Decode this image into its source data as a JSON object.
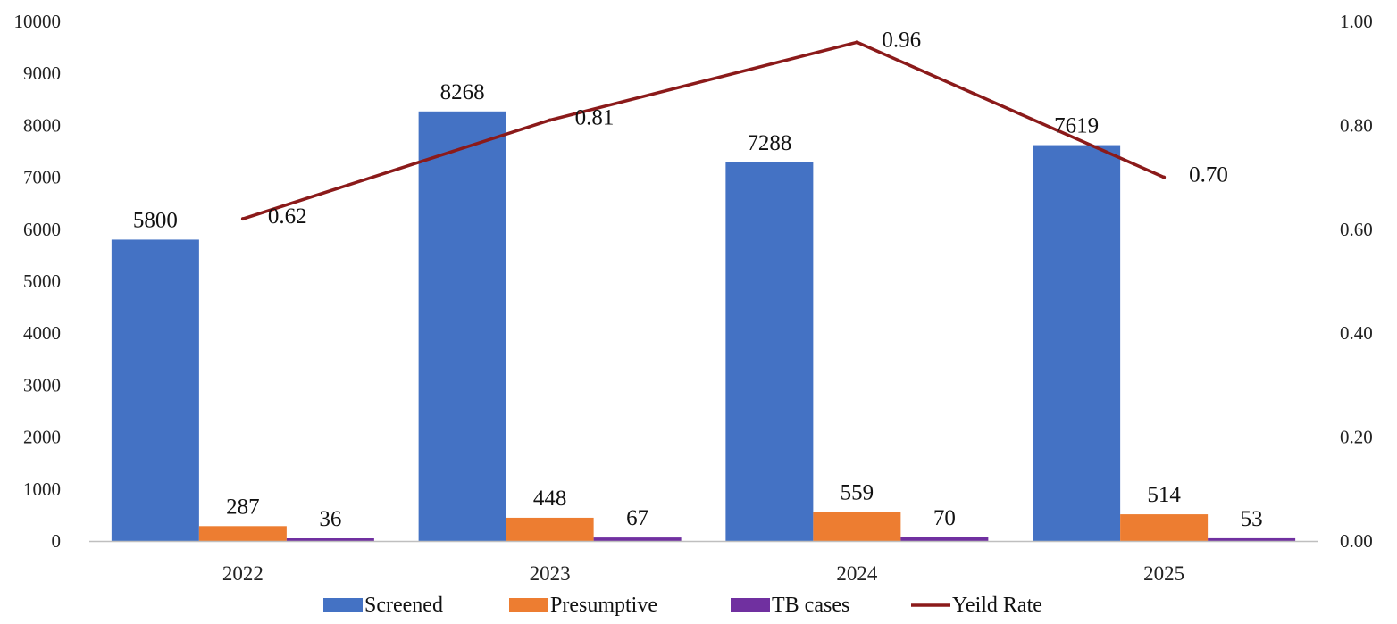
{
  "chart_data": {
    "type": "bar",
    "categories": [
      "2022",
      "2023",
      "2024",
      "2025"
    ],
    "series": [
      {
        "name": "Screened",
        "type": "bar",
        "axis": "left",
        "values": [
          5800,
          8268,
          7288,
          7619
        ],
        "labels": [
          "5800",
          "8268",
          "7288",
          "7619"
        ],
        "color": "#4472C4"
      },
      {
        "name": "Presumptive",
        "type": "bar",
        "axis": "left",
        "values": [
          287,
          448,
          559,
          514
        ],
        "labels": [
          "287",
          "448",
          "559",
          "514"
        ],
        "color": "#ED7D31"
      },
      {
        "name": "TB cases",
        "type": "bar",
        "axis": "left",
        "values": [
          36,
          67,
          70,
          53
        ],
        "labels": [
          "36",
          "67",
          "70",
          "53"
        ],
        "color": "#7030A0"
      },
      {
        "name": "Yeild Rate",
        "type": "line",
        "axis": "right",
        "values": [
          0.62,
          0.81,
          0.96,
          0.7
        ],
        "labels": [
          "0.62",
          "0.81",
          "0.96",
          "0.70"
        ],
        "color": "#8B1A1A"
      }
    ],
    "y_left": {
      "range": [
        0,
        10000
      ],
      "ticks": [
        "0",
        "1000",
        "2000",
        "3000",
        "4000",
        "5000",
        "6000",
        "7000",
        "8000",
        "9000",
        "10000"
      ]
    },
    "y_right": {
      "range": [
        0,
        1
      ],
      "ticks": [
        "0.00",
        "0.20",
        "0.40",
        "0.60",
        "0.80",
        "1.00"
      ]
    },
    "grid": false,
    "legend": "bottom-center"
  }
}
